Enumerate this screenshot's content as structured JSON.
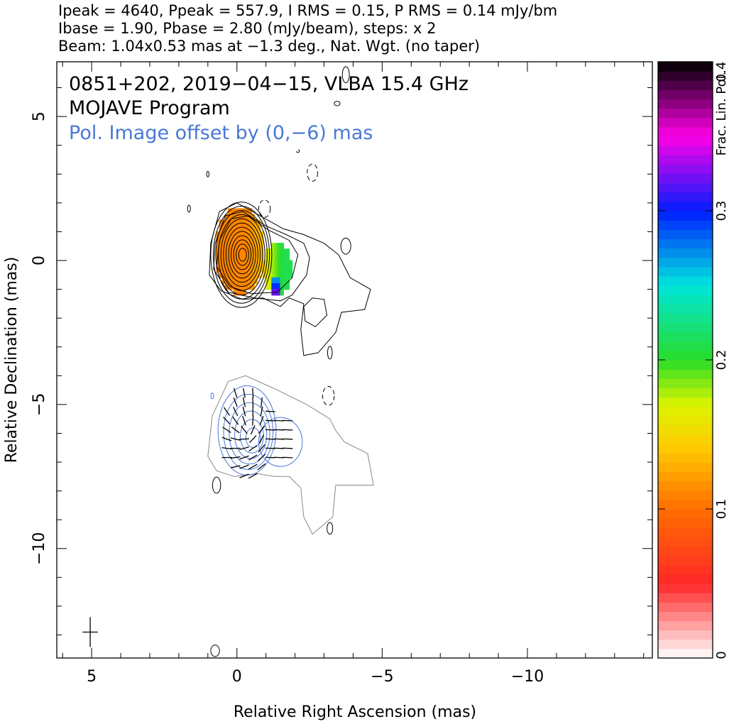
{
  "header": {
    "line1": "Ipeak = 4640, Ppeak = 557.9, I RMS = 0.15, P RMS = 0.14 mJy/bm",
    "line2": "Ibase = 1.90, Pbase = 2.80 (mJy/beam), steps: x 2",
    "line3": "Beam: 1.04x0.53 mas at −1.3 deg., Nat. Wgt. (no taper)"
  },
  "chart_data": {
    "type": "contour",
    "title": "0851+202, 2019−04−15, VLBA 15.4 GHz",
    "subtitle": "MOJAVE Program",
    "annotation": "Pol. Image offset by (0,−6) mas",
    "xlabel": "Relative Right Ascension (mas)",
    "ylabel": "Relative Declination (mas)",
    "xlim": [
      6.2,
      -14.3
    ],
    "ylim": [
      -13.8,
      6.9
    ],
    "x_ticks": [
      5,
      0,
      -5,
      -10
    ],
    "x_tick_labels": [
      "5",
      "0",
      "−5",
      "−10"
    ],
    "y_ticks": [
      5,
      0,
      -5,
      -10
    ],
    "y_tick_labels": [
      "5",
      "0",
      "−5",
      "−10"
    ],
    "x_minor_step": 1,
    "y_minor_step": 1,
    "stokes_I": {
      "peak": 4640,
      "rms": 0.15,
      "base": 1.9,
      "step_factor": 2,
      "levels": 12,
      "core": [
        -0.15,
        0.2
      ],
      "color": "#000000"
    },
    "polarization": {
      "peak": 557.9,
      "rms": 0.14,
      "base": 2.8,
      "offset": [
        0,
        -6
      ],
      "contour_color": "#4a78d6",
      "outline_color": "#888888",
      "vector_color": "#000000"
    },
    "beam": {
      "major": 1.04,
      "minor": 0.53,
      "pa_deg": -1.3,
      "weighting": "Nat. Wgt. (no taper)",
      "position": [
        5.05,
        -12.9
      ]
    },
    "colorbar": {
      "label": "Frac. Lin. Pol.",
      "range": [
        0,
        0.4
      ],
      "ticks": [
        0,
        0.1,
        0.2,
        0.3,
        0.4
      ],
      "tick_labels": [
        "0",
        "0.1",
        "0.2",
        "0.3",
        "0.4"
      ]
    }
  }
}
